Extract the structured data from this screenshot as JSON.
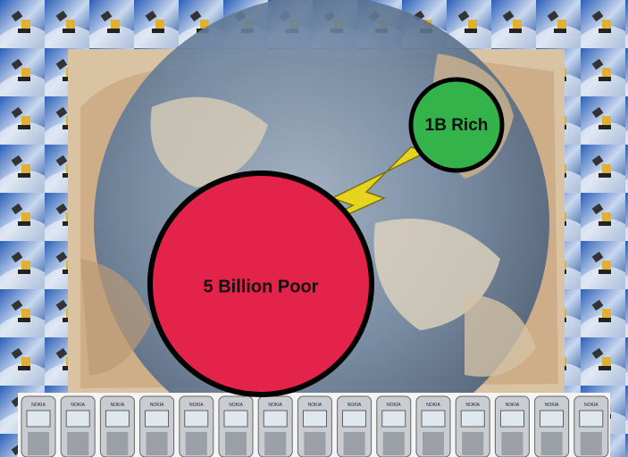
{
  "labels": {
    "poor": "5 Billion Poor",
    "rich": "1B Rich"
  },
  "phone_brand": "NOKIA"
}
